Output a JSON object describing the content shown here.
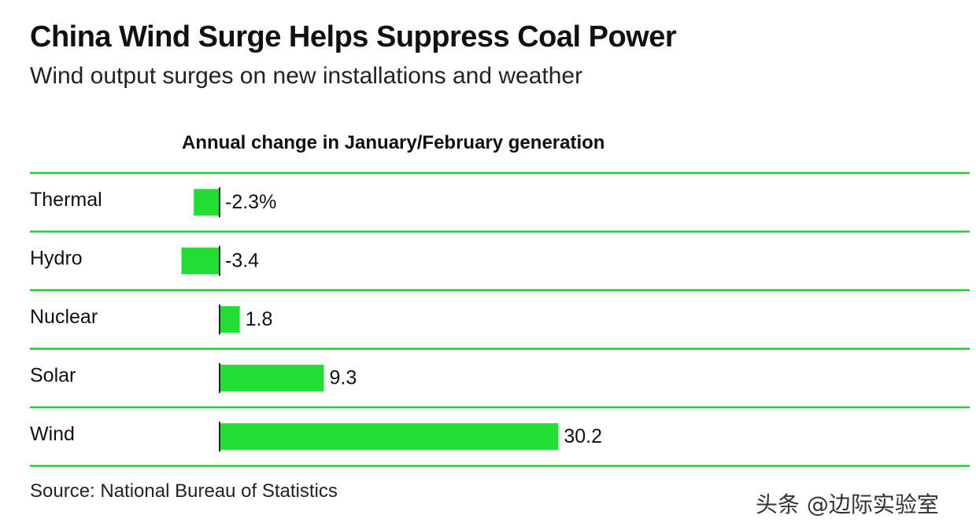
{
  "header": {
    "title": "China Wind Surge Helps Suppress Coal Power",
    "subtitle": "Wind output surges on new installations and weather"
  },
  "footer": {
    "source": "Source: National Bureau of Statistics",
    "watermark": "头条 @边际实验室"
  },
  "colors": {
    "bar": "#22dd33",
    "rule": "#22cc33",
    "text": "#111111",
    "axis": "#222222"
  },
  "chart_data": {
    "type": "bar",
    "orientation": "horizontal",
    "title": "Annual change in January/February generation",
    "categories": [
      "Thermal",
      "Hydro",
      "Nuclear",
      "Solar",
      "Wind"
    ],
    "values": [
      -2.3,
      -3.4,
      1.8,
      9.3,
      30.2
    ],
    "value_labels": [
      "-2.3%",
      "-3.4",
      "1.8",
      "9.3",
      "30.2"
    ],
    "unit": "%",
    "xlim": [
      -3.4,
      30.2
    ],
    "grid": false,
    "legend": "none"
  }
}
